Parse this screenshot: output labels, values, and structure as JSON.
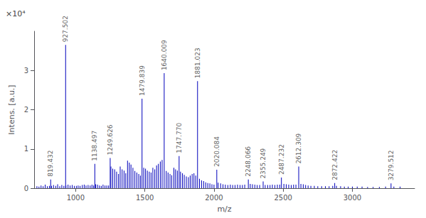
{
  "chart_data": {
    "type": "stem",
    "xlabel": "m/z",
    "ylabel": "Intens. [a.u.]",
    "xlim": [
      700,
      3450
    ],
    "ylim": [
      0,
      4.0
    ],
    "xticks": [
      1000,
      1500,
      2000,
      2500,
      3000
    ],
    "yticks": [
      0,
      1,
      2,
      3
    ],
    "grid": false,
    "color": "#0000bb",
    "series": [
      {
        "x": [
          720,
          735,
          750,
          765,
          780,
          795,
          810,
          825,
          840,
          856,
          870,
          885,
          900,
          915,
          930,
          945,
          960,
          975,
          990,
          1005,
          1018,
          1032,
          1048,
          1062,
          1075,
          1090,
          1105,
          1118,
          1130,
          1145,
          1158,
          1172,
          1185,
          1198,
          1212,
          1225,
          1238,
          1255,
          1268,
          1282,
          1296,
          1310,
          1322,
          1336,
          1350,
          1362,
          1375,
          1388,
          1400,
          1414,
          1428,
          1442,
          1456,
          1468,
          1492,
          1505,
          1518,
          1532,
          1545,
          1558,
          1572,
          1585,
          1598,
          1612,
          1625,
          1655,
          1668,
          1682,
          1695,
          1710,
          1722,
          1735,
          1758,
          1772,
          1785,
          1800,
          1815,
          1828,
          1842,
          1855,
          1868,
          1895,
          1910,
          1925,
          1940,
          1955,
          1970,
          1985,
          2000,
          2030,
          2048,
          2065,
          2082,
          2100,
          2118,
          2135,
          2152,
          2170,
          2188,
          2205,
          2222,
          2262,
          2278,
          2295,
          2312,
          2330,
          2370,
          2388,
          2405,
          2422,
          2440,
          2458,
          2475,
          2505,
          2522,
          2540,
          2558,
          2575,
          2592,
          2628,
          2645,
          2662,
          2680,
          2700,
          2725,
          2750,
          2778,
          2805,
          2832,
          2858,
          2885,
          2915,
          2942,
          2970,
          3000,
          3035,
          3070,
          3110,
          3150,
          3195,
          3240,
          3300,
          3345
        ],
        "values": [
          0.05,
          0.04,
          0.07,
          0.05,
          0.09,
          0.05,
          0.06,
          0.06,
          0.08,
          0.06,
          0.1,
          0.05,
          0.08,
          0.06,
          0.07,
          0.09,
          0.07,
          0.08,
          0.06,
          0.06,
          0.07,
          0.06,
          0.08,
          0.09,
          0.07,
          0.08,
          0.07,
          0.09,
          0.07,
          0.1,
          0.09,
          0.07,
          0.06,
          0.09,
          0.07,
          0.07,
          0.07,
          0.55,
          0.5,
          0.48,
          0.42,
          0.36,
          0.55,
          0.48,
          0.45,
          0.38,
          0.7,
          0.65,
          0.6,
          0.52,
          0.44,
          0.4,
          0.36,
          0.32,
          0.52,
          0.5,
          0.45,
          0.42,
          0.4,
          0.52,
          0.48,
          0.58,
          0.62,
          0.68,
          0.72,
          0.44,
          0.4,
          0.36,
          0.33,
          0.52,
          0.48,
          0.45,
          0.42,
          0.38,
          0.34,
          0.3,
          0.28,
          0.32,
          0.36,
          0.38,
          0.32,
          0.24,
          0.2,
          0.18,
          0.15,
          0.13,
          0.12,
          0.1,
          0.09,
          0.14,
          0.12,
          0.1,
          0.09,
          0.08,
          0.09,
          0.08,
          0.08,
          0.09,
          0.08,
          0.08,
          0.09,
          0.11,
          0.1,
          0.09,
          0.08,
          0.08,
          0.08,
          0.08,
          0.08,
          0.09,
          0.08,
          0.09,
          0.09,
          0.11,
          0.1,
          0.09,
          0.08,
          0.09,
          0.09,
          0.11,
          0.1,
          0.08,
          0.07,
          0.06,
          0.06,
          0.05,
          0.05,
          0.05,
          0.05,
          0.06,
          0.06,
          0.05,
          0.04,
          0.04,
          0.04,
          0.04,
          0.04,
          0.03,
          0.03,
          0.03,
          0.04,
          0.04,
          0.04
        ]
      },
      {
        "x": [
          819.432,
          927.502,
          1138.497,
          1249.626,
          1479.839,
          1640.009,
          1747.77,
          1881.023,
          2020.084,
          2248.066,
          2355.249,
          2487.232,
          2612.309,
          2872.422,
          3279.512
        ],
        "values": [
          0.22,
          3.65,
          0.62,
          0.77,
          2.28,
          2.93,
          0.82,
          2.73,
          0.47,
          0.22,
          0.17,
          0.27,
          0.55,
          0.13,
          0.12
        ]
      }
    ],
    "annotations": [
      {
        "text": "×10⁴"
      },
      {
        "text": "819.432",
        "x": 819.432,
        "y": 0.22
      },
      {
        "text": "927.502",
        "x": 927.502,
        "y": 3.65
      },
      {
        "text": "1138.497",
        "x": 1138.497,
        "y": 0.62
      },
      {
        "text": "1249.626",
        "x": 1249.626,
        "y": 0.77
      },
      {
        "text": "1479.839",
        "x": 1479.839,
        "y": 2.28
      },
      {
        "text": "1640.009",
        "x": 1640.009,
        "y": 2.93
      },
      {
        "text": "1747.770",
        "x": 1747.77,
        "y": 0.82
      },
      {
        "text": "1881.023",
        "x": 1881.023,
        "y": 2.73
      },
      {
        "text": "2020.084",
        "x": 2020.084,
        "y": 0.47
      },
      {
        "text": "2248.066",
        "x": 2248.066,
        "y": 0.22
      },
      {
        "text": "2355.249",
        "x": 2355.249,
        "y": 0.17
      },
      {
        "text": "2487.232",
        "x": 2487.232,
        "y": 0.27
      },
      {
        "text": "2612.309",
        "x": 2612.309,
        "y": 0.55
      },
      {
        "text": "2872.422",
        "x": 2872.422,
        "y": 0.13
      },
      {
        "text": "3279.512",
        "x": 3279.512,
        "y": 0.12
      }
    ]
  }
}
